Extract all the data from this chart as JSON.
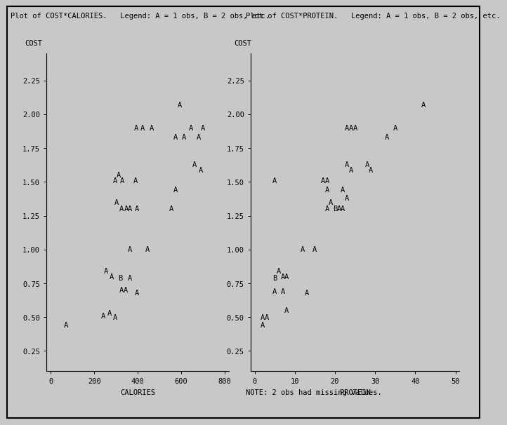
{
  "title_left": "Plot of COST*CALORIES.   Legend: A = 1 obs, B = 2 obs, etc.",
  "title_right": "Plot of COST*PROTEIN.   Legend: A = 1 obs, B = 2 obs, etc.",
  "note": "NOTE: 2 obs had missing values.",
  "bg_color": "#c8c8c8",
  "font_size": 7.5,
  "cal_xlabel": "CALORIES",
  "cal_ylabel": "COST",
  "cal_xlim": [
    -20,
    820
  ],
  "cal_ylim": [
    0.1,
    2.45
  ],
  "cal_xticks": [
    0,
    200,
    400,
    600,
    800
  ],
  "cal_yticks": [
    0.25,
    0.5,
    0.75,
    1.0,
    1.25,
    1.5,
    1.75,
    2.0,
    2.25
  ],
  "pro_xlabel": "PROTEIN",
  "pro_ylabel": "COST",
  "pro_xlim": [
    -1,
    51
  ],
  "pro_ylim": [
    0.1,
    2.45
  ],
  "pro_xticks": [
    0,
    10,
    20,
    30,
    40,
    50
  ],
  "pro_yticks": [
    0.25,
    0.5,
    0.75,
    1.0,
    1.25,
    1.5,
    1.75,
    2.0,
    2.25
  ],
  "cal_points": [
    [
      70,
      0.44,
      "A"
    ],
    [
      240,
      0.51,
      "A"
    ],
    [
      270,
      0.53,
      "A"
    ],
    [
      295,
      0.5,
      "A"
    ],
    [
      255,
      0.84,
      "A"
    ],
    [
      280,
      0.8,
      "A"
    ],
    [
      318,
      0.79,
      "B"
    ],
    [
      365,
      0.79,
      "A"
    ],
    [
      325,
      0.7,
      "A"
    ],
    [
      345,
      0.7,
      "A"
    ],
    [
      395,
      0.68,
      "A"
    ],
    [
      365,
      1.0,
      "A"
    ],
    [
      445,
      1.0,
      "A"
    ],
    [
      295,
      1.51,
      "A"
    ],
    [
      328,
      1.51,
      "A"
    ],
    [
      312,
      1.55,
      "A"
    ],
    [
      390,
      1.51,
      "A"
    ],
    [
      302,
      1.35,
      "A"
    ],
    [
      325,
      1.3,
      "A"
    ],
    [
      348,
      1.3,
      "A"
    ],
    [
      362,
      1.3,
      "A"
    ],
    [
      395,
      1.3,
      "A"
    ],
    [
      555,
      1.3,
      "A"
    ],
    [
      392,
      1.9,
      "A"
    ],
    [
      422,
      1.9,
      "A"
    ],
    [
      462,
      1.9,
      "A"
    ],
    [
      572,
      1.83,
      "A"
    ],
    [
      612,
      1.83,
      "A"
    ],
    [
      645,
      1.9,
      "A"
    ],
    [
      698,
      1.9,
      "A"
    ],
    [
      680,
      1.83,
      "A"
    ],
    [
      592,
      2.07,
      "A"
    ],
    [
      662,
      1.63,
      "A"
    ],
    [
      688,
      1.59,
      "A"
    ],
    [
      572,
      1.44,
      "A"
    ]
  ],
  "pro_points": [
    [
      2,
      0.5,
      "A"
    ],
    [
      2,
      0.44,
      "A"
    ],
    [
      3,
      0.5,
      "A"
    ],
    [
      5,
      0.79,
      "B"
    ],
    [
      5,
      0.69,
      "A"
    ],
    [
      6,
      0.84,
      "A"
    ],
    [
      7,
      0.8,
      "A"
    ],
    [
      7,
      0.69,
      "A"
    ],
    [
      8,
      0.8,
      "A"
    ],
    [
      8,
      0.55,
      "A"
    ],
    [
      12,
      1.0,
      "A"
    ],
    [
      13,
      0.68,
      "A"
    ],
    [
      15,
      1.0,
      "A"
    ],
    [
      5,
      1.51,
      "A"
    ],
    [
      17,
      1.51,
      "A"
    ],
    [
      18,
      1.51,
      "A"
    ],
    [
      18,
      1.44,
      "A"
    ],
    [
      18,
      1.3,
      "A"
    ],
    [
      19,
      1.35,
      "A"
    ],
    [
      20,
      1.3,
      "B"
    ],
    [
      21,
      1.3,
      "A"
    ],
    [
      22,
      1.3,
      "A"
    ],
    [
      22,
      1.44,
      "A"
    ],
    [
      23,
      1.38,
      "A"
    ],
    [
      23,
      1.63,
      "A"
    ],
    [
      24,
      1.59,
      "A"
    ],
    [
      23,
      1.9,
      "A"
    ],
    [
      24,
      1.9,
      "A"
    ],
    [
      25,
      1.9,
      "A"
    ],
    [
      28,
      1.63,
      "A"
    ],
    [
      29,
      1.59,
      "A"
    ],
    [
      33,
      1.83,
      "A"
    ],
    [
      35,
      1.9,
      "A"
    ],
    [
      42,
      2.07,
      "A"
    ]
  ]
}
